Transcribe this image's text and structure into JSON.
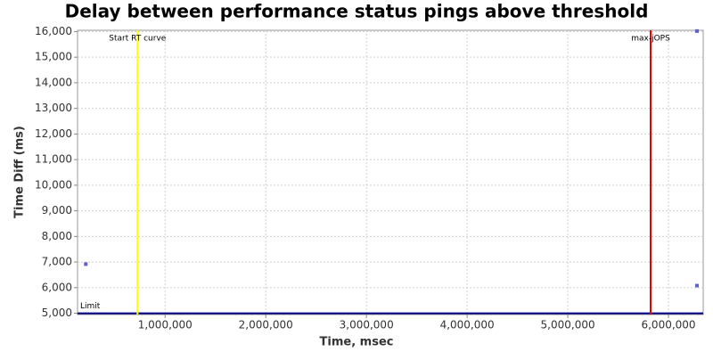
{
  "chart_data": {
    "type": "scatter",
    "title": "Delay between performance status pings above threshold",
    "xlabel": "Time, msec",
    "ylabel": "Time Diff (ms)",
    "xlim": [
      130000,
      6345000
    ],
    "ylim": [
      4950,
      16050
    ],
    "xticks": [
      {
        "value": 1000000,
        "label": "1,000,000"
      },
      {
        "value": 2000000,
        "label": "2,000,000"
      },
      {
        "value": 3000000,
        "label": "3,000,000"
      },
      {
        "value": 4000000,
        "label": "4,000,000"
      },
      {
        "value": 5000000,
        "label": "5,000,000"
      },
      {
        "value": 6000000,
        "label": "6,000,000"
      }
    ],
    "yticks": [
      {
        "value": 5000,
        "label": "5,000"
      },
      {
        "value": 6000,
        "label": "6,000"
      },
      {
        "value": 7000,
        "label": "7,000"
      },
      {
        "value": 8000,
        "label": "8,000"
      },
      {
        "value": 9000,
        "label": "9,000"
      },
      {
        "value": 10000,
        "label": "10,000"
      },
      {
        "value": 11000,
        "label": "11,000"
      },
      {
        "value": 12000,
        "label": "12,000"
      },
      {
        "value": 13000,
        "label": "13,000"
      },
      {
        "value": 14000,
        "label": "14,000"
      },
      {
        "value": 15000,
        "label": "15,000"
      },
      {
        "value": 16000,
        "label": "16,000"
      }
    ],
    "grid": true,
    "series": [
      {
        "color": "#6060d0",
        "x": [
          212000,
          6283000,
          6283000
        ],
        "values": [
          6920,
          16020,
          6080
        ]
      }
    ],
    "vlines": [
      {
        "label": "Start RT curve",
        "x": 726000,
        "color": "#ffff00"
      },
      {
        "label": "max-jOPS",
        "x": 5823000,
        "color": "#e00000"
      }
    ],
    "hlines": [
      {
        "label": "Limit",
        "y": 5000,
        "color": "#000080"
      }
    ]
  }
}
